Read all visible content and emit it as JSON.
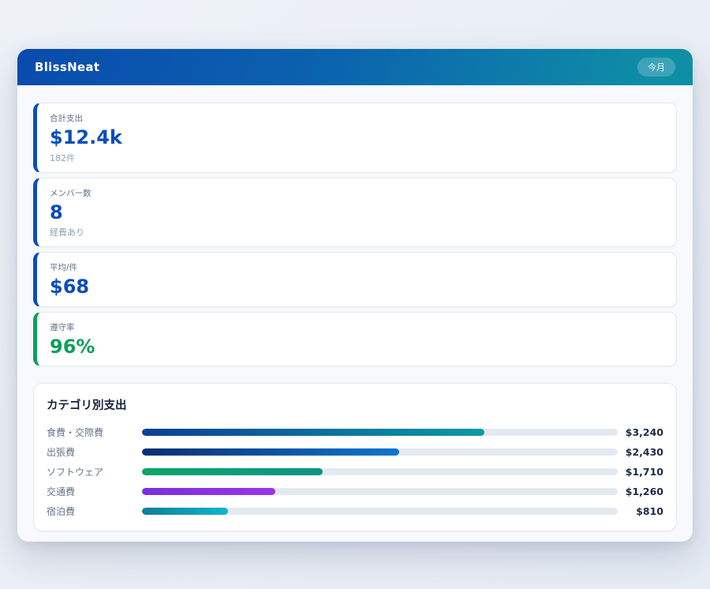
{
  "app": {
    "title": "BlissNeat",
    "period_badge": "今月"
  },
  "colors": {
    "header_gradient_start": "#0a4bad",
    "header_gradient_end": "#0e8fa6",
    "stat_accent_blue": "#0b4dbb",
    "stat_accent_green": "#0d9f5c",
    "bar_track": "#e3e9f0",
    "value_text": "#1c2b45"
  },
  "stats": [
    {
      "label": "合計支出",
      "value": "$12.4k",
      "sub": "182件",
      "accent": "#0b4dbb",
      "value_color": "#0b4dbb"
    },
    {
      "label": "メンバー数",
      "value": "8",
      "sub": "経費あり",
      "accent": "#0b4dbb",
      "value_color": "#0b4dbb"
    },
    {
      "label": "平均/件",
      "value": "$68",
      "sub": "",
      "accent": "#0b4dbb",
      "value_color": "#0b4dbb"
    },
    {
      "label": "遵守率",
      "value": "96%",
      "sub": "",
      "accent": "#0d9f5c",
      "value_color": "#0d9f5c"
    }
  ],
  "category_section": {
    "title": "カテゴリ別支出",
    "chart_data": {
      "type": "bar",
      "categories": [
        "食費・交際費",
        "出張費",
        "ソフトウェア",
        "交通費",
        "宿泊費"
      ],
      "values": [
        3240,
        2430,
        1710,
        1260,
        810
      ],
      "value_labels": [
        "$3,240",
        "$2,430",
        "$1,710",
        "$1,260",
        "$810"
      ],
      "xlim": [
        0,
        4500
      ],
      "orientation": "horizontal",
      "bar_gradients": [
        [
          "#0b3f96",
          "#0d9aa4"
        ],
        [
          "#0a2f72",
          "#0b76d1"
        ],
        [
          "#0ea568",
          "#0e9487"
        ],
        [
          "#7a2ee0",
          "#9a35e8"
        ],
        [
          "#0f7e98",
          "#0cb6cf"
        ]
      ]
    }
  }
}
